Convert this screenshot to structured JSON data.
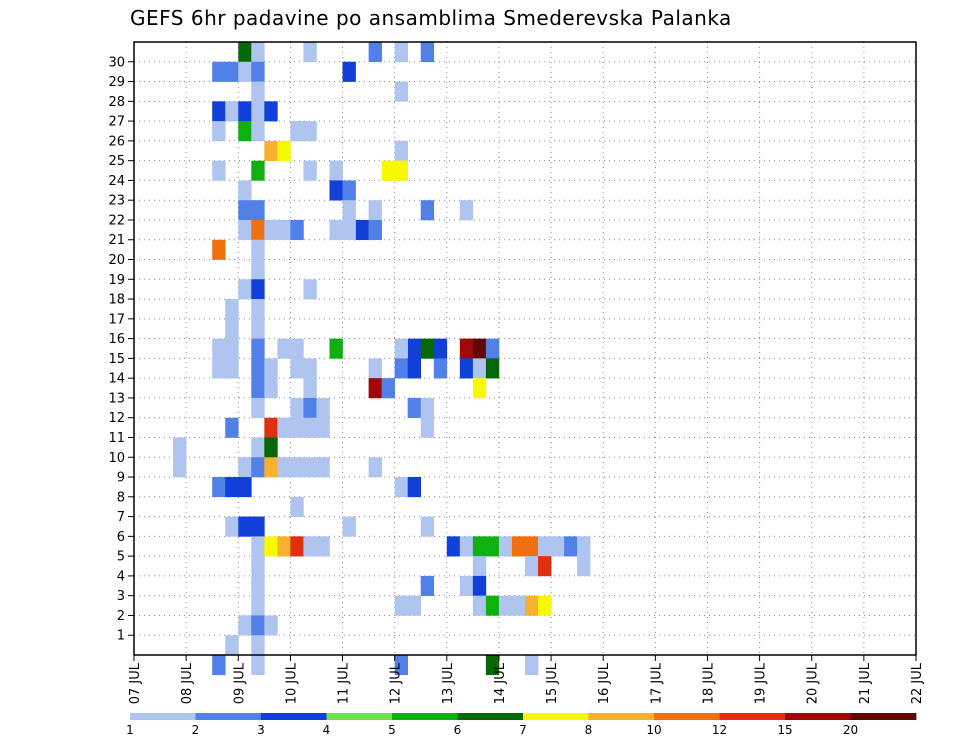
{
  "chart_data": {
    "type": "heatmap",
    "title": "GEFS 6hr padavine po ansamblima Smederevska Palanka",
    "x_tick_labels": [
      "07 JUL",
      "08 JUL",
      "09 JUL",
      "10 JUL",
      "11 JUL",
      "12 JUL",
      "13 JUL",
      "14 JUL",
      "15 JUL",
      "16 JUL",
      "17 JUL",
      "18 JUL",
      "19 JUL",
      "20 JUL",
      "21 JUL",
      "22 JUL"
    ],
    "x_range": [
      0,
      60
    ],
    "y_tick_labels": [
      "1",
      "2",
      "3",
      "4",
      "5",
      "6",
      "7",
      "8",
      "9",
      "10",
      "11",
      "12",
      "13",
      "14",
      "15",
      "16",
      "17",
      "18",
      "19",
      "20",
      "21",
      "22",
      "23",
      "24",
      "25",
      "26",
      "27",
      "28",
      "29",
      "30"
    ],
    "y_range": [
      0,
      31
    ],
    "grid": true,
    "legend": {
      "placement": "bottom",
      "labels": [
        "1",
        "2",
        "3",
        "4",
        "5",
        "6",
        "7",
        "8",
        "10",
        "12",
        "15",
        "20"
      ],
      "colors": [
        "#b0c4f0",
        "#5080e8",
        "#1040d8",
        "#70e050",
        "#10b010",
        "#086808",
        "#f8f800",
        "#f8b030",
        "#f07010",
        "#e03010",
        "#a00808",
        "#600808"
      ]
    },
    "cells": [
      [
        8,
        30,
        5
      ],
      [
        9,
        30,
        0
      ],
      [
        13,
        30,
        0
      ],
      [
        20,
        30,
        0
      ],
      [
        18,
        30,
        1
      ],
      [
        22,
        30,
        1
      ],
      [
        6,
        29,
        1
      ],
      [
        7,
        29,
        1
      ],
      [
        8,
        29,
        0
      ],
      [
        9,
        29,
        1
      ],
      [
        16,
        29,
        2
      ],
      [
        9,
        28,
        0
      ],
      [
        20,
        28,
        0
      ],
      [
        6,
        27,
        2
      ],
      [
        7,
        27,
        0
      ],
      [
        8,
        27,
        2
      ],
      [
        9,
        27,
        0
      ],
      [
        10,
        27,
        2
      ],
      [
        6,
        26,
        0
      ],
      [
        8,
        26,
        4
      ],
      [
        9,
        26,
        0
      ],
      [
        12,
        26,
        0
      ],
      [
        13,
        26,
        0
      ],
      [
        10,
        25,
        7
      ],
      [
        11,
        25,
        6
      ],
      [
        20,
        25,
        0
      ],
      [
        6,
        24,
        0
      ],
      [
        9,
        24,
        4
      ],
      [
        13,
        24,
        0
      ],
      [
        19,
        24,
        6
      ],
      [
        20,
        24,
        6
      ],
      [
        15,
        24,
        0
      ],
      [
        8,
        23,
        0
      ],
      [
        15,
        23,
        2
      ],
      [
        16,
        23,
        1
      ],
      [
        8,
        22,
        1
      ],
      [
        9,
        22,
        1
      ],
      [
        16,
        22,
        0
      ],
      [
        18,
        22,
        0
      ],
      [
        22,
        22,
        1
      ],
      [
        25,
        22,
        0
      ],
      [
        8,
        21,
        0
      ],
      [
        9,
        21,
        8
      ],
      [
        10,
        21,
        0
      ],
      [
        11,
        21,
        0
      ],
      [
        12,
        21,
        1
      ],
      [
        17,
        21,
        2
      ],
      [
        18,
        21,
        1
      ],
      [
        15,
        21,
        0
      ],
      [
        16,
        21,
        0
      ],
      [
        6,
        20,
        8
      ],
      [
        9,
        20,
        0
      ],
      [
        9,
        19,
        0
      ],
      [
        8,
        18,
        0
      ],
      [
        9,
        18,
        2
      ],
      [
        13,
        18,
        0
      ],
      [
        7,
        17,
        0
      ],
      [
        9,
        17,
        0
      ],
      [
        7,
        16,
        0
      ],
      [
        9,
        16,
        0
      ],
      [
        6,
        15,
        0
      ],
      [
        7,
        15,
        0
      ],
      [
        9,
        15,
        1
      ],
      [
        11,
        15,
        0
      ],
      [
        12,
        15,
        0
      ],
      [
        23,
        15,
        2
      ],
      [
        25,
        15,
        10
      ],
      [
        26,
        15,
        11
      ],
      [
        27,
        15,
        1
      ],
      [
        21,
        15,
        2
      ],
      [
        22,
        15,
        5
      ],
      [
        15,
        15,
        4
      ],
      [
        20,
        15,
        0
      ],
      [
        6,
        14,
        0
      ],
      [
        7,
        14,
        0
      ],
      [
        9,
        14,
        1
      ],
      [
        10,
        14,
        0
      ],
      [
        12,
        14,
        0
      ],
      [
        13,
        14,
        0
      ],
      [
        20,
        14,
        1
      ],
      [
        21,
        14,
        2
      ],
      [
        23,
        14,
        1
      ],
      [
        25,
        14,
        2
      ],
      [
        26,
        14,
        0
      ],
      [
        27,
        14,
        5
      ],
      [
        18,
        14,
        0
      ],
      [
        9,
        13,
        1
      ],
      [
        10,
        13,
        0
      ],
      [
        13,
        13,
        0
      ],
      [
        26,
        13,
        6
      ],
      [
        18,
        13,
        10
      ],
      [
        19,
        13,
        1
      ],
      [
        9,
        12,
        0
      ],
      [
        12,
        12,
        0
      ],
      [
        13,
        12,
        1
      ],
      [
        14,
        12,
        0
      ],
      [
        21,
        12,
        1
      ],
      [
        22,
        12,
        0
      ],
      [
        7,
        11,
        1
      ],
      [
        10,
        11,
        9
      ],
      [
        11,
        11,
        0
      ],
      [
        12,
        11,
        0
      ],
      [
        13,
        11,
        0
      ],
      [
        14,
        11,
        0
      ],
      [
        22,
        11,
        0
      ],
      [
        3,
        10,
        0
      ],
      [
        9,
        10,
        0
      ],
      [
        10,
        10,
        5
      ],
      [
        3,
        9,
        0
      ],
      [
        8,
        9,
        0
      ],
      [
        9,
        9,
        1
      ],
      [
        10,
        9,
        7
      ],
      [
        11,
        9,
        0
      ],
      [
        12,
        9,
        0
      ],
      [
        13,
        9,
        0
      ],
      [
        14,
        9,
        0
      ],
      [
        18,
        9,
        0
      ],
      [
        6,
        8,
        1
      ],
      [
        7,
        8,
        2
      ],
      [
        8,
        8,
        2
      ],
      [
        20,
        8,
        0
      ],
      [
        21,
        8,
        2
      ],
      [
        12,
        7,
        0
      ],
      [
        7,
        6,
        0
      ],
      [
        8,
        6,
        2
      ],
      [
        9,
        6,
        2
      ],
      [
        16,
        6,
        0
      ],
      [
        22,
        6,
        0
      ],
      [
        9,
        5,
        0
      ],
      [
        10,
        5,
        6
      ],
      [
        11,
        5,
        7
      ],
      [
        12,
        5,
        9
      ],
      [
        13,
        5,
        0
      ],
      [
        14,
        5,
        0
      ],
      [
        24,
        5,
        2
      ],
      [
        25,
        5,
        0
      ],
      [
        26,
        5,
        4
      ],
      [
        27,
        5,
        4
      ],
      [
        28,
        5,
        0
      ],
      [
        29,
        5,
        8
      ],
      [
        30,
        5,
        8
      ],
      [
        31,
        5,
        0
      ],
      [
        32,
        5,
        0
      ],
      [
        33,
        5,
        1
      ],
      [
        34,
        5,
        0
      ],
      [
        9,
        4,
        0
      ],
      [
        26,
        4,
        0
      ],
      [
        30,
        4,
        0
      ],
      [
        31,
        4,
        9
      ],
      [
        34,
        4,
        0
      ],
      [
        9,
        3,
        0
      ],
      [
        22,
        3,
        1
      ],
      [
        25,
        3,
        0
      ],
      [
        26,
        3,
        2
      ],
      [
        9,
        2,
        0
      ],
      [
        20,
        2,
        0
      ],
      [
        21,
        2,
        0
      ],
      [
        26,
        2,
        0
      ],
      [
        27,
        2,
        4
      ],
      [
        28,
        2,
        0
      ],
      [
        29,
        2,
        0
      ],
      [
        30,
        2,
        7
      ],
      [
        31,
        2,
        6
      ],
      [
        8,
        1,
        0
      ],
      [
        9,
        1,
        1
      ],
      [
        10,
        1,
        0
      ],
      [
        7,
        0,
        0
      ],
      [
        9,
        0,
        0
      ],
      [
        6,
        -1,
        1
      ],
      [
        9,
        -1,
        0
      ],
      [
        20,
        -1,
        1
      ],
      [
        27,
        -1,
        5
      ],
      [
        30,
        -1,
        0
      ]
    ]
  }
}
